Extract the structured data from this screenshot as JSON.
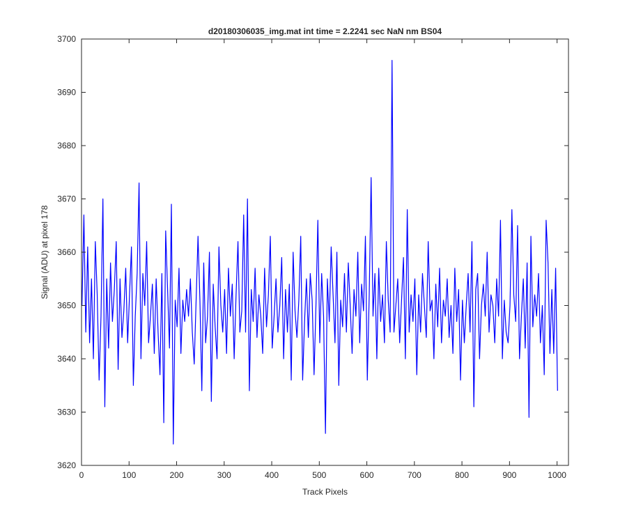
{
  "chart_data": {
    "type": "line",
    "title": "d20180306035_img.mat int time = 2.2241 sec  NaN nm BS04",
    "xlabel": "Track Pixels",
    "ylabel": "Signal (ADU) at pixel 178",
    "xlim": [
      0,
      1024
    ],
    "ylim": [
      3620,
      3700
    ],
    "xticks": [
      0,
      100,
      200,
      300,
      400,
      500,
      600,
      700,
      800,
      900,
      1000
    ],
    "yticks": [
      3620,
      3630,
      3640,
      3650,
      3660,
      3670,
      3680,
      3690,
      3700
    ],
    "grid": false,
    "series_color": "#0000ff",
    "series": [
      {
        "x_start": 1,
        "x_step": 4,
        "values": [
          3650,
          3667,
          3645,
          3661,
          3643,
          3655,
          3640,
          3662,
          3652,
          3636,
          3648,
          3670,
          3631,
          3655,
          3642,
          3658,
          3647,
          3653,
          3662,
          3638,
          3655,
          3644,
          3649,
          3657,
          3643,
          3652,
          3661,
          3635,
          3648,
          3656,
          3673,
          3640,
          3656,
          3650,
          3662,
          3643,
          3648,
          3654,
          3641,
          3655,
          3645,
          3637,
          3656,
          3628,
          3664,
          3653,
          3642,
          3669,
          3624,
          3651,
          3646,
          3657,
          3641,
          3651,
          3647,
          3653,
          3648,
          3655,
          3645,
          3639,
          3651,
          3663,
          3651,
          3634,
          3658,
          3643,
          3648,
          3660,
          3632,
          3654,
          3646,
          3640,
          3661,
          3650,
          3645,
          3653,
          3641,
          3657,
          3648,
          3654,
          3640,
          3652,
          3662,
          3645,
          3649,
          3667,
          3645,
          3670,
          3634,
          3653,
          3647,
          3657,
          3644,
          3652,
          3648,
          3641,
          3657,
          3646,
          3652,
          3663,
          3642,
          3648,
          3655,
          3645,
          3650,
          3659,
          3640,
          3653,
          3645,
          3654,
          3636,
          3660,
          3649,
          3644,
          3651,
          3663,
          3636,
          3647,
          3655,
          3644,
          3656,
          3651,
          3637,
          3650,
          3666,
          3643,
          3656,
          3648,
          3626,
          3655,
          3647,
          3661,
          3652,
          3643,
          3660,
          3635,
          3651,
          3646,
          3656,
          3645,
          3658,
          3650,
          3641,
          3653,
          3648,
          3660,
          3643,
          3654,
          3649,
          3663,
          3636,
          3652,
          3674,
          3648,
          3656,
          3640,
          3657,
          3647,
          3652,
          3643,
          3662,
          3651,
          3645,
          3696,
          3645,
          3650,
          3655,
          3643,
          3651,
          3659,
          3640,
          3668,
          3645,
          3652,
          3647,
          3655,
          3637,
          3652,
          3645,
          3656,
          3650,
          3644,
          3662,
          3649,
          3651,
          3640,
          3654,
          3646,
          3657,
          3643,
          3651,
          3648,
          3655,
          3644,
          3650,
          3641,
          3657,
          3647,
          3653,
          3636,
          3651,
          3643,
          3650,
          3656,
          3645,
          3662,
          3631,
          3653,
          3656,
          3640,
          3650,
          3654,
          3648,
          3660,
          3645,
          3652,
          3650,
          3643,
          3655,
          3648,
          3666,
          3640,
          3651,
          3645,
          3643,
          3650,
          3668,
          3652,
          3647,
          3665,
          3640,
          3648,
          3655,
          3642,
          3658,
          3629,
          3663,
          3646,
          3652,
          3648,
          3656,
          3643,
          3650,
          3637,
          3666,
          3658,
          3641,
          3653,
          3641,
          3657,
          3634
        ]
      }
    ]
  }
}
